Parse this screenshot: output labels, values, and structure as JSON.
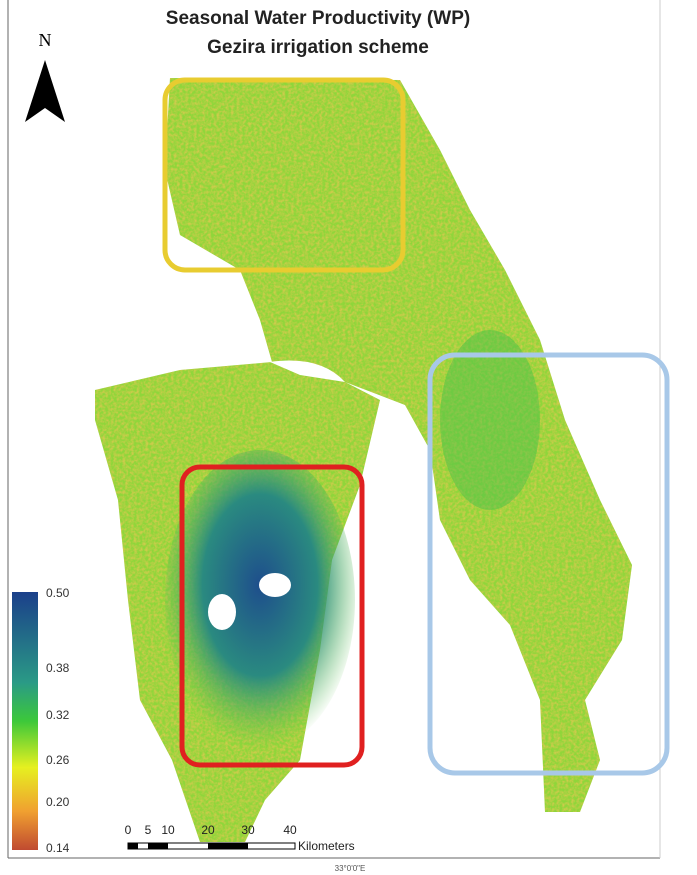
{
  "header": {
    "title_line1": "Seasonal Water Productivity (WP)",
    "title_line2": "Gezira irrigation scheme"
  },
  "north_arrow": {
    "label": "N"
  },
  "legend": {
    "labels": [
      "0.50",
      "0.38",
      "0.32",
      "0.26",
      "0.20",
      "0.14"
    ]
  },
  "scale_bar": {
    "labels": [
      "0",
      "5",
      "10",
      "20",
      "30",
      "40"
    ],
    "unit": "Kilometers"
  },
  "graticule": {
    "label": "33°0'0\"E"
  }
}
